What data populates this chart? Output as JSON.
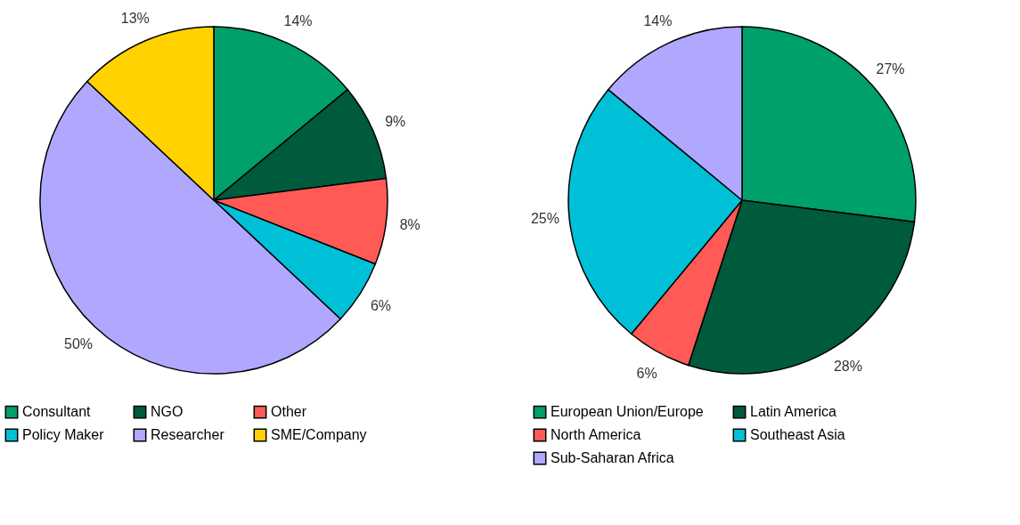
{
  "chart_data": [
    {
      "type": "pie",
      "categories": [
        "Consultant",
        "NGO",
        "Other",
        "Policy Maker",
        "Researcher",
        "SME/Company"
      ],
      "values": [
        14,
        9,
        8,
        6,
        50,
        13
      ],
      "colors": [
        "#00a06b",
        "#005a3c",
        "#ff5a55",
        "#00c0d8",
        "#b0a8ff",
        "#ffd200"
      ],
      "value_labels": [
        "14%",
        "9%",
        "8%",
        "6%",
        "50%",
        "13%"
      ],
      "legend": "bottom"
    },
    {
      "type": "pie",
      "categories": [
        "European Union/Europe",
        "Latin America",
        "North America",
        "Southeast Asia",
        "Sub-Saharan Africa"
      ],
      "values": [
        27,
        28,
        6,
        25,
        14
      ],
      "colors": [
        "#00a06b",
        "#005a3c",
        "#ff5a55",
        "#00c0d8",
        "#b0a8ff"
      ],
      "value_labels": [
        "27%",
        "28%",
        "6%",
        "25%",
        "14%"
      ],
      "legend": "bottom"
    }
  ]
}
